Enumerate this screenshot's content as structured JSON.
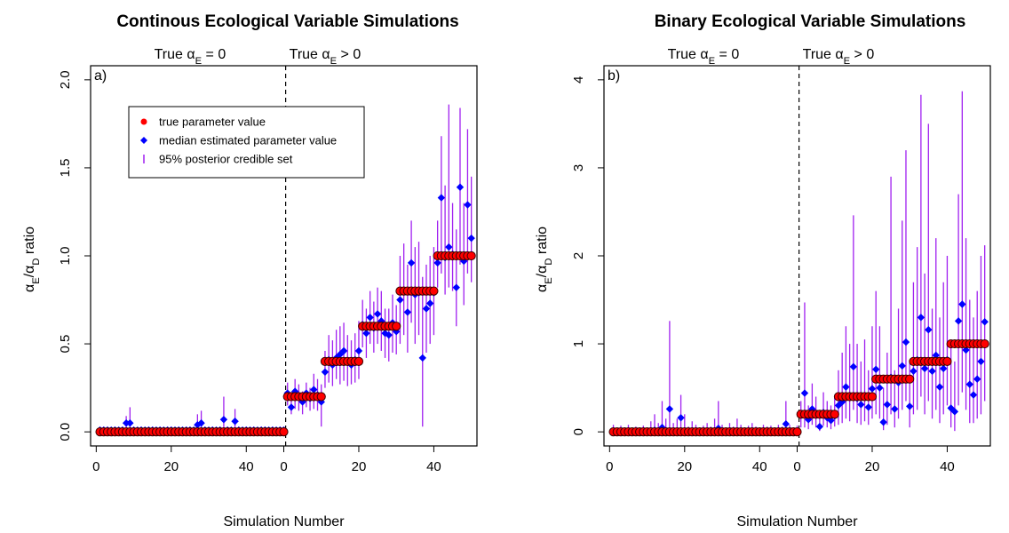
{
  "chart_data": [
    {
      "type": "scatter",
      "panel_label": "a)",
      "title": "Continous Ecological Variable Simulations",
      "xlabel": "Simulation Number",
      "ylabel": "αE/αD ratio",
      "section_left_label": "True αE = 0",
      "section_right_label": "True αE > 0",
      "xticks_left": [
        "0",
        "20",
        "40"
      ],
      "xticks_right": [
        "0",
        "20",
        "40"
      ],
      "yticks": [
        "0.0",
        "0.5",
        "1.0",
        "1.5",
        "2.0"
      ],
      "ylim": [
        0,
        2
      ],
      "legend": {
        "position": "top-left",
        "entries": [
          "true parameter value",
          "median estimated parameter value",
          "95% posterior credible set"
        ]
      },
      "colors": {
        "true": "#ff0000",
        "median": "#0000ff",
        "interval": "#a020f0"
      },
      "simulations": {
        "n_null": 50,
        "groups": [
          {
            "true_value": 0.2,
            "count": 10
          },
          {
            "true_value": 0.4,
            "count": 10
          },
          {
            "true_value": 0.6,
            "count": 10
          },
          {
            "true_value": 0.8,
            "count": 10
          },
          {
            "true_value": 1.0,
            "count": 10
          }
        ],
        "null_median": [
          0.01,
          0.01,
          0.01,
          0.01,
          0.01,
          0.01,
          0.01,
          0.05,
          0.05,
          0.01,
          0.01,
          0.01,
          0.01,
          0.01,
          0.01,
          0.01,
          0.01,
          0.01,
          0.01,
          0.01,
          0.01,
          0.01,
          0.01,
          0.01,
          0.01,
          0.01,
          0.04,
          0.05,
          0.01,
          0.01,
          0.01,
          0.01,
          0.01,
          0.07,
          0.01,
          0.01,
          0.06,
          0.01,
          0.01,
          0.01,
          0.01,
          0.01,
          0.01,
          0.01,
          0.01,
          0.01,
          0.01,
          0.01,
          0.01,
          0.01
        ],
        "null_upper": [
          0.03,
          0.03,
          0.03,
          0.02,
          0.03,
          0.02,
          0.03,
          0.09,
          0.14,
          0.03,
          0.02,
          0.03,
          0.02,
          0.03,
          0.03,
          0.02,
          0.03,
          0.02,
          0.03,
          0.03,
          0.02,
          0.03,
          0.02,
          0.03,
          0.03,
          0.02,
          0.1,
          0.12,
          0.03,
          0.02,
          0.03,
          0.02,
          0.03,
          0.2,
          0.03,
          0.02,
          0.13,
          0.03,
          0.02,
          0.03,
          0.02,
          0.03,
          0.02,
          0.03,
          0.03,
          0.02,
          0.03,
          0.02,
          0.03,
          0.03
        ],
        "alt_median": [
          0.22,
          0.14,
          0.23,
          0.2,
          0.17,
          0.22,
          0.19,
          0.24,
          0.21,
          0.17,
          0.34,
          0.41,
          0.38,
          0.42,
          0.44,
          0.46,
          0.4,
          0.38,
          0.41,
          0.46,
          0.61,
          0.56,
          0.65,
          0.59,
          0.67,
          0.63,
          0.56,
          0.55,
          0.62,
          0.57,
          0.75,
          0.8,
          0.68,
          0.96,
          0.78,
          0.79,
          0.42,
          0.7,
          0.73,
          0.79,
          0.96,
          1.33,
          0.99,
          1.05,
          1.01,
          0.82,
          1.39,
          0.97,
          1.29,
          1.1
        ],
        "alt_lower": [
          0.15,
          0.1,
          0.13,
          0.12,
          0.1,
          0.14,
          0.12,
          0.13,
          0.12,
          0.03,
          0.25,
          0.28,
          0.26,
          0.3,
          0.27,
          0.29,
          0.26,
          0.27,
          0.28,
          0.3,
          0.48,
          0.42,
          0.5,
          0.45,
          0.5,
          0.46,
          0.42,
          0.4,
          0.45,
          0.44,
          0.5,
          0.55,
          0.45,
          0.62,
          0.5,
          0.55,
          0.03,
          0.45,
          0.5,
          0.55,
          0.82,
          0.9,
          0.78,
          0.82,
          0.8,
          0.6,
          0.95,
          0.72,
          0.9,
          0.85
        ],
        "alt_upper": [
          0.28,
          0.2,
          0.3,
          0.27,
          0.23,
          0.28,
          0.25,
          0.33,
          0.3,
          0.27,
          0.46,
          0.55,
          0.52,
          0.58,
          0.6,
          0.62,
          0.55,
          0.52,
          0.56,
          0.63,
          0.75,
          0.7,
          0.8,
          0.74,
          0.82,
          0.8,
          0.7,
          0.7,
          0.78,
          0.72,
          1.0,
          1.07,
          0.95,
          1.2,
          1.05,
          1.08,
          0.88,
          0.95,
          1.0,
          1.05,
          1.2,
          1.68,
          1.4,
          1.86,
          1.3,
          1.15,
          1.84,
          1.3,
          1.72,
          1.45
        ]
      }
    },
    {
      "type": "scatter",
      "panel_label": "b)",
      "title": "Binary Ecological Variable Simulations",
      "xlabel": "Simulation Number",
      "ylabel": "αE/αD ratio",
      "section_left_label": "True αE = 0",
      "section_right_label": "True αE > 0",
      "xticks_left": [
        "0",
        "20",
        "40"
      ],
      "xticks_right": [
        "0",
        "20",
        "40"
      ],
      "yticks": [
        "0",
        "1",
        "2",
        "3",
        "4"
      ],
      "ylim": [
        0,
        4
      ],
      "colors": {
        "true": "#ff0000",
        "median": "#0000ff",
        "interval": "#a020f0"
      },
      "simulations": {
        "n_null": 50,
        "groups": [
          {
            "true_value": 0.2,
            "count": 10
          },
          {
            "true_value": 0.4,
            "count": 10
          },
          {
            "true_value": 0.6,
            "count": 10
          },
          {
            "true_value": 0.8,
            "count": 10
          },
          {
            "true_value": 1.0,
            "count": 10
          }
        ],
        "null_median": [
          0.01,
          0.01,
          0.01,
          0.01,
          0.01,
          0.01,
          0.01,
          0.01,
          0.01,
          0.01,
          0.01,
          0.02,
          0.01,
          0.05,
          0.01,
          0.26,
          0.01,
          0.01,
          0.16,
          0.01,
          0.01,
          0.01,
          0.01,
          0.01,
          0.01,
          0.01,
          0.01,
          0.01,
          0.04,
          0.01,
          0.01,
          0.01,
          0.01,
          0.01,
          0.01,
          0.01,
          0.01,
          0.01,
          0.01,
          0.01,
          0.01,
          0.01,
          0.01,
          0.01,
          0.01,
          0.01,
          0.09,
          0.01,
          0.01,
          0.01
        ],
        "null_upper": [
          0.08,
          0.05,
          0.07,
          0.05,
          0.08,
          0.04,
          0.06,
          0.05,
          0.07,
          0.05,
          0.12,
          0.2,
          0.1,
          0.35,
          0.15,
          1.26,
          0.1,
          0.15,
          0.42,
          0.2,
          0.06,
          0.12,
          0.08,
          0.05,
          0.07,
          0.1,
          0.06,
          0.15,
          0.35,
          0.08,
          0.05,
          0.1,
          0.06,
          0.15,
          0.08,
          0.05,
          0.07,
          0.1,
          0.06,
          0.05,
          0.08,
          0.06,
          0.07,
          0.05,
          0.08,
          0.06,
          0.35,
          0.08,
          0.05,
          0.07
        ],
        "alt_median": [
          0.19,
          0.44,
          0.14,
          0.26,
          0.19,
          0.06,
          0.22,
          0.16,
          0.13,
          0.18,
          0.3,
          0.34,
          0.51,
          0.41,
          0.74,
          0.38,
          0.31,
          0.41,
          0.28,
          0.49,
          0.71,
          0.5,
          0.11,
          0.31,
          0.62,
          0.26,
          0.56,
          0.75,
          1.02,
          0.29,
          0.69,
          0.82,
          1.3,
          0.72,
          1.16,
          0.69,
          0.87,
          0.51,
          0.72,
          0.82,
          0.27,
          0.23,
          1.26,
          1.45,
          0.93,
          0.54,
          0.42,
          0.6,
          0.8,
          1.25
        ],
        "alt_lower": [
          0.05,
          0.05,
          0.03,
          0.08,
          0.05,
          0.01,
          0.07,
          0.05,
          0.03,
          0.06,
          0.08,
          0.1,
          0.15,
          0.12,
          0.25,
          0.1,
          0.08,
          0.12,
          0.08,
          0.15,
          0.2,
          0.15,
          0.02,
          0.08,
          0.2,
          0.05,
          0.15,
          0.25,
          0.35,
          0.05,
          0.2,
          0.25,
          0.4,
          0.2,
          0.35,
          0.15,
          0.25,
          0.1,
          0.2,
          0.3,
          0.05,
          0.01,
          0.3,
          0.45,
          0.25,
          0.1,
          0.1,
          0.15,
          0.2,
          0.35
        ],
        "alt_upper": [
          0.35,
          1.47,
          0.3,
          0.55,
          0.4,
          0.2,
          0.45,
          0.35,
          0.3,
          0.4,
          0.7,
          0.9,
          1.2,
          1.0,
          2.46,
          1.0,
          0.8,
          1.05,
          0.7,
          1.2,
          1.6,
          1.2,
          0.5,
          0.9,
          2.9,
          0.7,
          1.4,
          2.4,
          3.2,
          0.8,
          1.7,
          2.1,
          3.83,
          1.8,
          3.5,
          1.4,
          2.2,
          1.3,
          1.7,
          2.0,
          1.0,
          0.8,
          2.7,
          3.87,
          2.2,
          1.5,
          1.3,
          1.6,
          2.0,
          2.12
        ]
      }
    }
  ]
}
